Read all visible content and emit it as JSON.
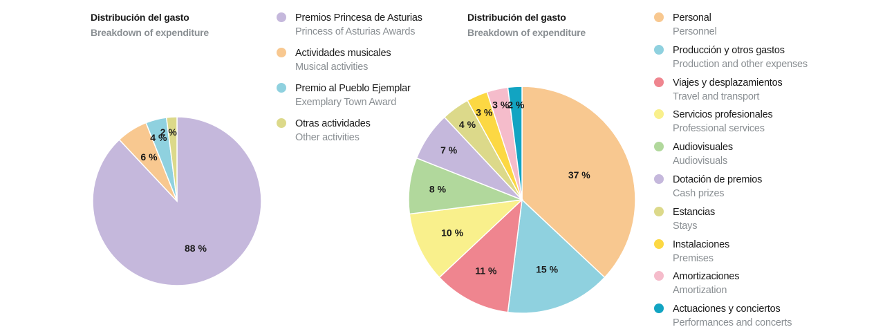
{
  "chart_data": [
    {
      "type": "pie",
      "title": "Distribución del gasto",
      "subtitle": "Breakdown of expenditure",
      "slices": [
        {
          "label_es": "Premios Princesa de Asturias",
          "label_en": "Princess of Asturias Awards",
          "value": 88,
          "label": "88 %",
          "color": "#c5b8dc"
        },
        {
          "label_es": "Actividades musicales",
          "label_en": "Musical activities",
          "value": 6,
          "label": "6 %",
          "color": "#f8c890"
        },
        {
          "label_es": "Premio al Pueblo Ejemplar",
          "label_en": "Exemplary Town Award",
          "value": 4,
          "label": "4 %",
          "color": "#8fd1df"
        },
        {
          "label_es": "Otras actividades",
          "label_en": "Other activities",
          "value": 2,
          "label": "2 %",
          "color": "#dcd98a"
        }
      ],
      "legend_placement": "right"
    },
    {
      "type": "pie",
      "title": "Distribución del gasto",
      "subtitle": "Breakdown of expenditure",
      "slices": [
        {
          "label_es": "Personal",
          "label_en": "Personnel",
          "value": 37,
          "label": "37 %",
          "color": "#f8c890"
        },
        {
          "label_es": "Producción y otros gastos",
          "label_en": "Production and other expenses",
          "value": 15,
          "label": "15 %",
          "color": "#8fd1df"
        },
        {
          "label_es": "Viajes y desplazamientos",
          "label_en": "Travel and transport",
          "value": 11,
          "label": "11 %",
          "color": "#ef858f"
        },
        {
          "label_es": "Servicios profesionales",
          "label_en": "Professional services",
          "value": 10,
          "label": "10 %",
          "color": "#f9f08c"
        },
        {
          "label_es": "Audiovisuales",
          "label_en": "Audiovisuals",
          "value": 8,
          "label": "8 %",
          "color": "#b1d89c"
        },
        {
          "label_es": "Dotación de premios",
          "label_en": "Cash prizes",
          "value": 7,
          "label": "7 %",
          "color": "#c5b8dc"
        },
        {
          "label_es": "Estancias",
          "label_en": "Stays",
          "value": 4,
          "label": "4 %",
          "color": "#dcd98a"
        },
        {
          "label_es": "Instalaciones",
          "label_en": "Premises",
          "value": 3,
          "label": "3 %",
          "color": "#fcd843"
        },
        {
          "label_es": "Amortizaciones",
          "label_en": "Amortization",
          "value": 3,
          "label": "3 %",
          "color": "#f5bccb"
        },
        {
          "label_es": "Actuaciones y conciertos",
          "label_en": "Performances and concerts",
          "value": 2,
          "label": "2 %",
          "color": "#12a4c2"
        }
      ],
      "legend_placement": "right"
    }
  ]
}
